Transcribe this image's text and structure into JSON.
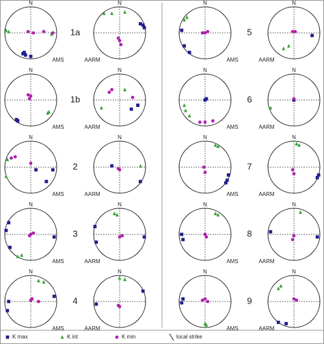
{
  "north_label": "N",
  "legend": [
    {
      "key": "kmax",
      "name": "K max",
      "color": "#1f1f8f",
      "shape": "square"
    },
    {
      "key": "kint",
      "name": "K int",
      "color": "#33a033",
      "shape": "triangle"
    },
    {
      "key": "kmin",
      "name": "K min",
      "color": "#b020b0",
      "shape": "circle"
    },
    {
      "key": "strike",
      "name": "local strike"
    }
  ],
  "panels": [
    {
      "label": "1a",
      "nets": [
        {
          "caption": "AMS",
          "points": {
            "kmax": [
              [
                -0.3,
                -0.8
              ],
              [
                -0.2,
                -0.85
              ],
              [
                0.0,
                -0.9
              ],
              [
                -0.25,
                -0.75
              ]
            ],
            "kint": [
              [
                -0.95,
                0.1
              ],
              [
                -0.85,
                0.05
              ],
              [
                0.8,
                -0.05
              ]
            ],
            "kmin": [
              [
                -0.1,
                0.05
              ],
              [
                0.1,
                0.0
              ],
              [
                0.5,
                0.05
              ],
              [
                0.85,
                0.0
              ]
            ]
          }
        },
        {
          "caption": "AARM",
          "points": {
            "kmax": [
              [
                0.9,
                0.3
              ],
              [
                0.95,
                0.2
              ],
              [
                0.8,
                0.35
              ]
            ],
            "kint": [
              [
                -0.6,
                0.75
              ],
              [
                -0.3,
                0.75
              ],
              [
                0.2,
                0.8
              ]
            ],
            "kmin": [
              [
                0.0,
                -0.3
              ],
              [
                0.05,
                -0.45
              ],
              [
                -0.05,
                -0.2
              ]
            ]
          }
        }
      ]
    },
    {
      "label": "1b",
      "nets": [
        {
          "caption": "AMS",
          "points": {
            "kmax": [
              [
                -0.55,
                -0.75
              ],
              [
                -0.5,
                -0.8
              ]
            ],
            "kint": [
              [
                0.65,
                -0.5
              ],
              [
                0.7,
                -0.45
              ]
            ],
            "kmin": [
              [
                -0.1,
                0.2
              ],
              [
                0.0,
                0.15
              ],
              [
                -0.05,
                0.05
              ]
            ]
          }
        },
        {
          "caption": "AARM",
          "points": {
            "kmax": [
              [
                0.7,
                -0.2
              ],
              [
                0.45,
                -0.35
              ]
            ],
            "kint": [
              [
                -0.7,
                -0.3
              ],
              [
                0.2,
                0.4
              ]
            ],
            "kmin": [
              [
                -0.4,
                0.3
              ],
              [
                -0.3,
                0.4
              ],
              [
                0.5,
                0.1
              ]
            ]
          }
        }
      ]
    },
    {
      "label": "2",
      "nets": [
        {
          "caption": "AMS",
          "points": {
            "kmax": [
              [
                0.2,
                -0.1
              ],
              [
                0.6,
                -0.55
              ],
              [
                0.85,
                -0.1
              ]
            ],
            "kint": [
              [
                -0.9,
                0.3
              ],
              [
                -0.95,
                -0.35
              ]
            ],
            "kmin": [
              [
                -0.75,
                0.35
              ],
              [
                0.0,
                0.15
              ],
              [
                -0.6,
                0.4
              ]
            ]
          }
        },
        {
          "caption": "AARM",
          "points": {
            "kmax": [
              [
                0.8,
                -0.55
              ],
              [
                -0.3,
                0.05
              ]
            ],
            "kint": [
              [
                0.8,
                0.05
              ]
            ],
            "kmin": [
              [
                0.0,
                -0.1
              ],
              [
                -0.05,
                -0.05
              ]
            ]
          }
        }
      ]
    },
    {
      "label": "3",
      "nets": [
        {
          "caption": "AMS",
          "points": {
            "kmax": [
              [
                -0.95,
                0.15
              ],
              [
                -0.8,
                -0.5
              ],
              [
                0.9,
                -0.1
              ],
              [
                -0.85,
                0.45
              ]
            ],
            "kint": [
              [
                -0.5,
                -0.85
              ],
              [
                -0.35,
                -0.8
              ]
            ],
            "kmin": [
              [
                0.0,
                0.0
              ],
              [
                0.1,
                0.05
              ],
              [
                -0.05,
                -0.05
              ]
            ]
          }
        },
        {
          "caption": "AARM",
          "points": {
            "kmax": [
              [
                0.95,
                -0.1
              ],
              [
                -0.95,
                0.3
              ],
              [
                -0.9,
                -0.3
              ]
            ],
            "kint": [
              [
                -0.2,
                0.8
              ],
              [
                -0.1,
                0.75
              ]
            ],
            "kmin": [
              [
                0.0,
                -0.1
              ],
              [
                0.1,
                -0.05
              ]
            ]
          }
        }
      ]
    },
    {
      "label": "4",
      "nets": [
        {
          "caption": "AMS",
          "points": {
            "kmax": [
              [
                -0.9,
                -0.35
              ],
              [
                -0.85,
                0.0
              ],
              [
                0.9,
                0.2
              ]
            ],
            "kint": [
              [
                0.3,
                0.8
              ],
              [
                0.5,
                0.75
              ]
            ],
            "kmin": [
              [
                0.05,
                0.1
              ],
              [
                0.0,
                0.05
              ],
              [
                0.3,
                0.0
              ]
            ]
          }
        },
        {
          "caption": "AARM",
          "points": {
            "kmax": [
              [
                -0.9,
                -0.1
              ],
              [
                0.9,
                0.4
              ]
            ],
            "kint": [
              [
                0.0,
                0.9
              ],
              [
                0.2,
                0.85
              ]
            ],
            "kmin": [
              [
                -0.05,
                -0.15
              ],
              [
                0.0,
                -0.2
              ]
            ]
          }
        }
      ]
    },
    {
      "label": "5",
      "nets": [
        {
          "caption": "AMS",
          "points": {
            "kmax": [
              [
                -0.8,
                -0.5
              ],
              [
                -0.6,
                -0.75
              ],
              [
                -0.9,
                0.1
              ]
            ],
            "kint": [
              [
                -0.8,
                0.5
              ],
              [
                -0.7,
                0.6
              ]
            ],
            "kmin": [
              [
                0.0,
                0.0
              ],
              [
                0.1,
                0.05
              ],
              [
                -0.1,
                0.0
              ]
            ]
          }
        },
        {
          "caption": "AARM",
          "points": {
            "kmax": [
              [
                0.7,
                -0.1
              ]
            ],
            "kint": [
              [
                -0.2,
                -0.5
              ],
              [
                -0.4,
                -0.6
              ]
            ],
            "kmin": [
              [
                -0.05,
                0.05
              ],
              [
                0.05,
                0.05
              ]
            ]
          }
        }
      ]
    },
    {
      "label": "6",
      "nets": [
        {
          "caption": "AMS",
          "points": {
            "kmax": [
              [
                0.0,
                0.0
              ],
              [
                0.05,
                0.05
              ]
            ],
            "kint": [
              [
                -0.75,
                -0.4
              ],
              [
                -0.8,
                -0.2
              ],
              [
                -0.6,
                -0.6
              ]
            ],
            "kmin": [
              [
                0.0,
                -0.85
              ],
              [
                0.3,
                -0.8
              ],
              [
                -0.2,
                -0.85
              ]
            ]
          }
        },
        {
          "caption": "AARM",
          "points": {
            "kmax": [
              [
                0.0,
                0.0
              ]
            ],
            "kint": [
              [
                -0.9,
                -0.3
              ]
            ],
            "kmin": [
              [
                0.0,
                0.05
              ]
            ]
          }
        }
      ]
    },
    {
      "label": "7",
      "nets": [
        {
          "caption": "AMS",
          "points": {
            "kmax": [
              [
                0.85,
                -0.5
              ],
              [
                0.9,
                -0.3
              ],
              [
                0.8,
                -0.6
              ]
            ],
            "kint": [
              [
                0.4,
                0.85
              ],
              [
                0.5,
                0.8
              ]
            ],
            "kmin": [
              [
                -0.05,
                0.0
              ],
              [
                0.0,
                -0.2
              ]
            ]
          }
        },
        {
          "caption": "AARM",
          "points": {
            "kmax": [
              [
                0.9,
                -0.4
              ],
              [
                0.95,
                -0.3
              ]
            ],
            "kint": [
              [
                0.2,
                0.85
              ],
              [
                0.1,
                0.9
              ]
            ],
            "kmin": [
              [
                -0.05,
                -0.1
              ],
              [
                0.0,
                -0.25
              ]
            ]
          }
        }
      ]
    },
    {
      "label": "8",
      "nets": [
        {
          "caption": "AMS",
          "points": {
            "kmax": [
              [
                -0.85,
                -0.2
              ],
              [
                -0.9,
                0.0
              ]
            ],
            "kint": [
              [
                0.4,
                0.8
              ],
              [
                0.5,
                0.75
              ]
            ],
            "kmin": [
              [
                0.0,
                0.0
              ],
              [
                0.05,
                -0.1
              ]
            ]
          }
        },
        {
          "caption": "AARM",
          "points": {
            "kmax": [
              [
                -0.9,
                0.1
              ],
              [
                0.9,
                -0.1
              ]
            ],
            "kint": [
              [
                0.25,
                0.85
              ]
            ],
            "kmin": [
              [
                0.0,
                -0.05
              ],
              [
                -0.05,
                -0.2
              ]
            ]
          }
        }
      ]
    },
    {
      "label": "9",
      "nets": [
        {
          "caption": "AMS",
          "points": {
            "kmax": [
              [
                -0.85,
                0.1
              ],
              [
                -0.9,
                -0.05
              ]
            ],
            "kint": [
              [
                0.0,
                -0.85
              ],
              [
                0.05,
                -0.9
              ]
            ],
            "kmin": [
              [
                0.0,
                0.1
              ],
              [
                -0.1,
                0.05
              ],
              [
                0.1,
                0.0
              ]
            ]
          }
        },
        {
          "caption": "AARM",
          "points": {
            "kmax": [
              [
                -0.6,
                -0.8
              ],
              [
                -0.3,
                -0.85
              ]
            ],
            "kint": [
              [
                -0.5,
                0.6
              ],
              [
                -0.6,
                0.5
              ]
            ],
            "kmin": [
              [
                0.1,
                0.05
              ],
              [
                0.0,
                0.1
              ]
            ]
          }
        }
      ]
    }
  ]
}
